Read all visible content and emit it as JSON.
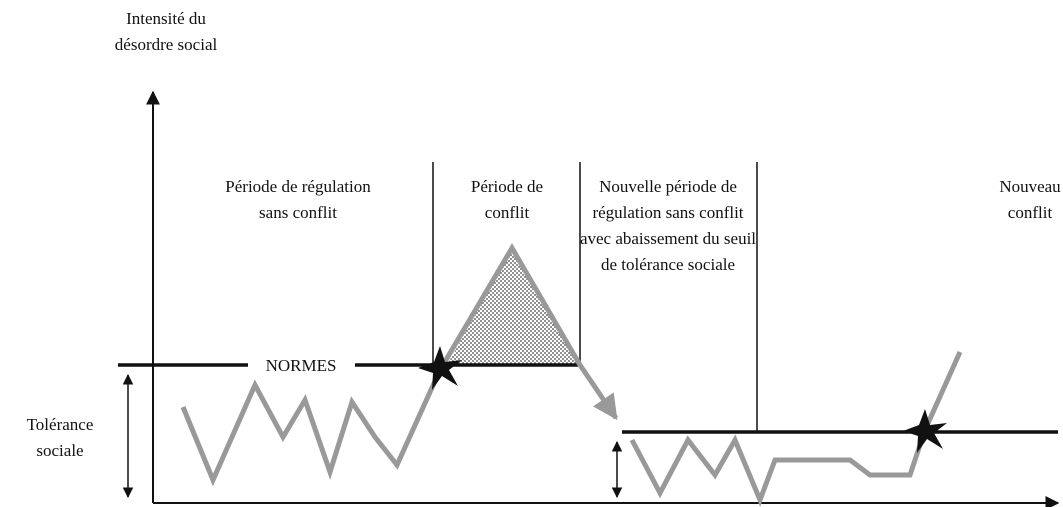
{
  "axis_label": [
    "Intensité du",
    "désordre social"
  ],
  "periods": [
    {
      "lines": [
        "Période de régulation",
        "sans conflit"
      ]
    },
    {
      "lines": [
        "Période de",
        "conflit"
      ]
    },
    {
      "lines": [
        "Nouvelle période de",
        "régulation sans conflit",
        "avec abaissement du seuil",
        "de tolérance sociale"
      ]
    },
    {
      "lines": [
        "Nouveau",
        "conflit"
      ]
    }
  ],
  "norms_label": "NORMES",
  "tolerance_label": [
    "Tolérance",
    "sociale"
  ]
}
